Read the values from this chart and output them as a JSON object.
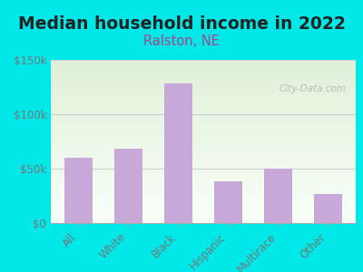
{
  "title": "Median household income in 2022",
  "subtitle": "Ralston, NE",
  "categories": [
    "All",
    "White",
    "Black",
    "Hispanic",
    "Multirace",
    "Other"
  ],
  "values": [
    60000,
    68000,
    128000,
    38000,
    50000,
    27000
  ],
  "bar_color": "#c8a8d8",
  "background_outer": "#00e8e8",
  "background_inner_top": "#e0f0d8",
  "background_inner_bottom": "#f8fff8",
  "ylim": [
    0,
    150000
  ],
  "yticks": [
    0,
    50000,
    100000,
    150000
  ],
  "ytick_labels": [
    "$0",
    "$50k",
    "$100k",
    "$150k"
  ],
  "title_fontsize": 13.5,
  "subtitle_fontsize": 10.5,
  "title_color": "#222222",
  "subtitle_color": "#aa4488",
  "tick_color": "#777777",
  "watermark": "City-Data.com"
}
